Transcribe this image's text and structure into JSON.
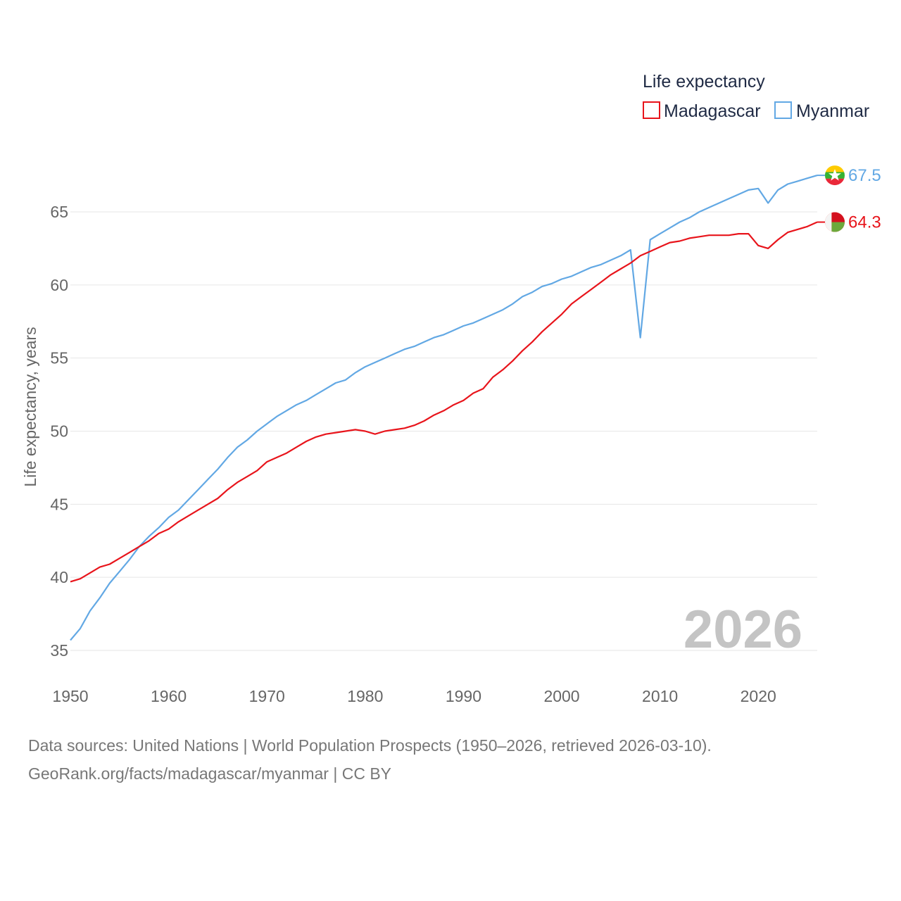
{
  "legend": {
    "title": "Life expectancy"
  },
  "big_year": "2026",
  "footer": {
    "line1": "Data sources: United Nations | World Population Prospects (1950–2026, retrieved 2026-03-10).",
    "line2": "GeoRank.org/facts/madagascar/myanmar | CC BY"
  },
  "colors": {
    "madagascar": "#e8141b",
    "myanmar": "#62a8e4",
    "grid": "#e6e6e6"
  },
  "icons": {
    "madagascar": "madagascar-flag-icon",
    "myanmar": "myanmar-flag-icon"
  },
  "chart_data": {
    "type": "line",
    "title": "Life expectancy",
    "xlabel": "",
    "ylabel": "Life expectancy, years",
    "xlim": [
      1950,
      2026
    ],
    "ylim": [
      33,
      69
    ],
    "xticks": [
      1950,
      1960,
      1970,
      1980,
      1990,
      2000,
      2010,
      2020
    ],
    "yticks": [
      35,
      40,
      45,
      50,
      55,
      60,
      65
    ],
    "grid": true,
    "legend_position": "top-right",
    "x": [
      1950,
      1951,
      1952,
      1953,
      1954,
      1955,
      1956,
      1957,
      1958,
      1959,
      1960,
      1961,
      1962,
      1963,
      1964,
      1965,
      1966,
      1967,
      1968,
      1969,
      1970,
      1971,
      1972,
      1973,
      1974,
      1975,
      1976,
      1977,
      1978,
      1979,
      1980,
      1981,
      1982,
      1983,
      1984,
      1985,
      1986,
      1987,
      1988,
      1989,
      1990,
      1991,
      1992,
      1993,
      1994,
      1995,
      1996,
      1997,
      1998,
      1999,
      2000,
      2001,
      2002,
      2003,
      2004,
      2005,
      2006,
      2007,
      2008,
      2009,
      2010,
      2011,
      2012,
      2013,
      2014,
      2015,
      2016,
      2017,
      2018,
      2019,
      2020,
      2021,
      2022,
      2023,
      2024,
      2025,
      2026
    ],
    "series": [
      {
        "name": "Madagascar",
        "end_label": "64.3",
        "values": [
          39.7,
          39.9,
          40.3,
          40.7,
          40.9,
          41.3,
          41.7,
          42.1,
          42.5,
          43.0,
          43.3,
          43.8,
          44.2,
          44.6,
          45.0,
          45.4,
          46.0,
          46.5,
          46.9,
          47.3,
          47.9,
          48.2,
          48.5,
          48.9,
          49.3,
          49.6,
          49.8,
          49.9,
          50.0,
          50.1,
          50.0,
          49.8,
          50.0,
          50.1,
          50.2,
          50.4,
          50.7,
          51.1,
          51.4,
          51.8,
          52.1,
          52.6,
          52.9,
          53.7,
          54.2,
          54.8,
          55.5,
          56.1,
          56.8,
          57.4,
          58.0,
          58.7,
          59.2,
          59.7,
          60.2,
          60.7,
          61.1,
          61.5,
          62.0,
          62.3,
          62.6,
          62.9,
          63.0,
          63.2,
          63.3,
          63.4,
          63.4,
          63.4,
          63.5,
          63.5,
          62.7,
          62.5,
          63.1,
          63.6,
          63.8,
          64.0,
          64.3
        ]
      },
      {
        "name": "Myanmar",
        "end_label": "67.5",
        "values": [
          35.7,
          36.5,
          37.7,
          38.6,
          39.6,
          40.4,
          41.2,
          42.1,
          42.8,
          43.4,
          44.1,
          44.6,
          45.3,
          46.0,
          46.7,
          47.4,
          48.2,
          48.9,
          49.4,
          50.0,
          50.5,
          51.0,
          51.4,
          51.8,
          52.1,
          52.5,
          52.9,
          53.3,
          53.5,
          54.0,
          54.4,
          54.7,
          55.0,
          55.3,
          55.6,
          55.8,
          56.1,
          56.4,
          56.6,
          56.9,
          57.2,
          57.4,
          57.7,
          58.0,
          58.3,
          58.7,
          59.2,
          59.5,
          59.9,
          60.1,
          60.4,
          60.6,
          60.9,
          61.2,
          61.4,
          61.7,
          62.0,
          62.4,
          56.4,
          63.1,
          63.5,
          63.9,
          64.3,
          64.6,
          65.0,
          65.3,
          65.6,
          65.9,
          66.2,
          66.5,
          66.6,
          65.6,
          66.5,
          66.9,
          67.1,
          67.3,
          67.5
        ]
      }
    ]
  }
}
